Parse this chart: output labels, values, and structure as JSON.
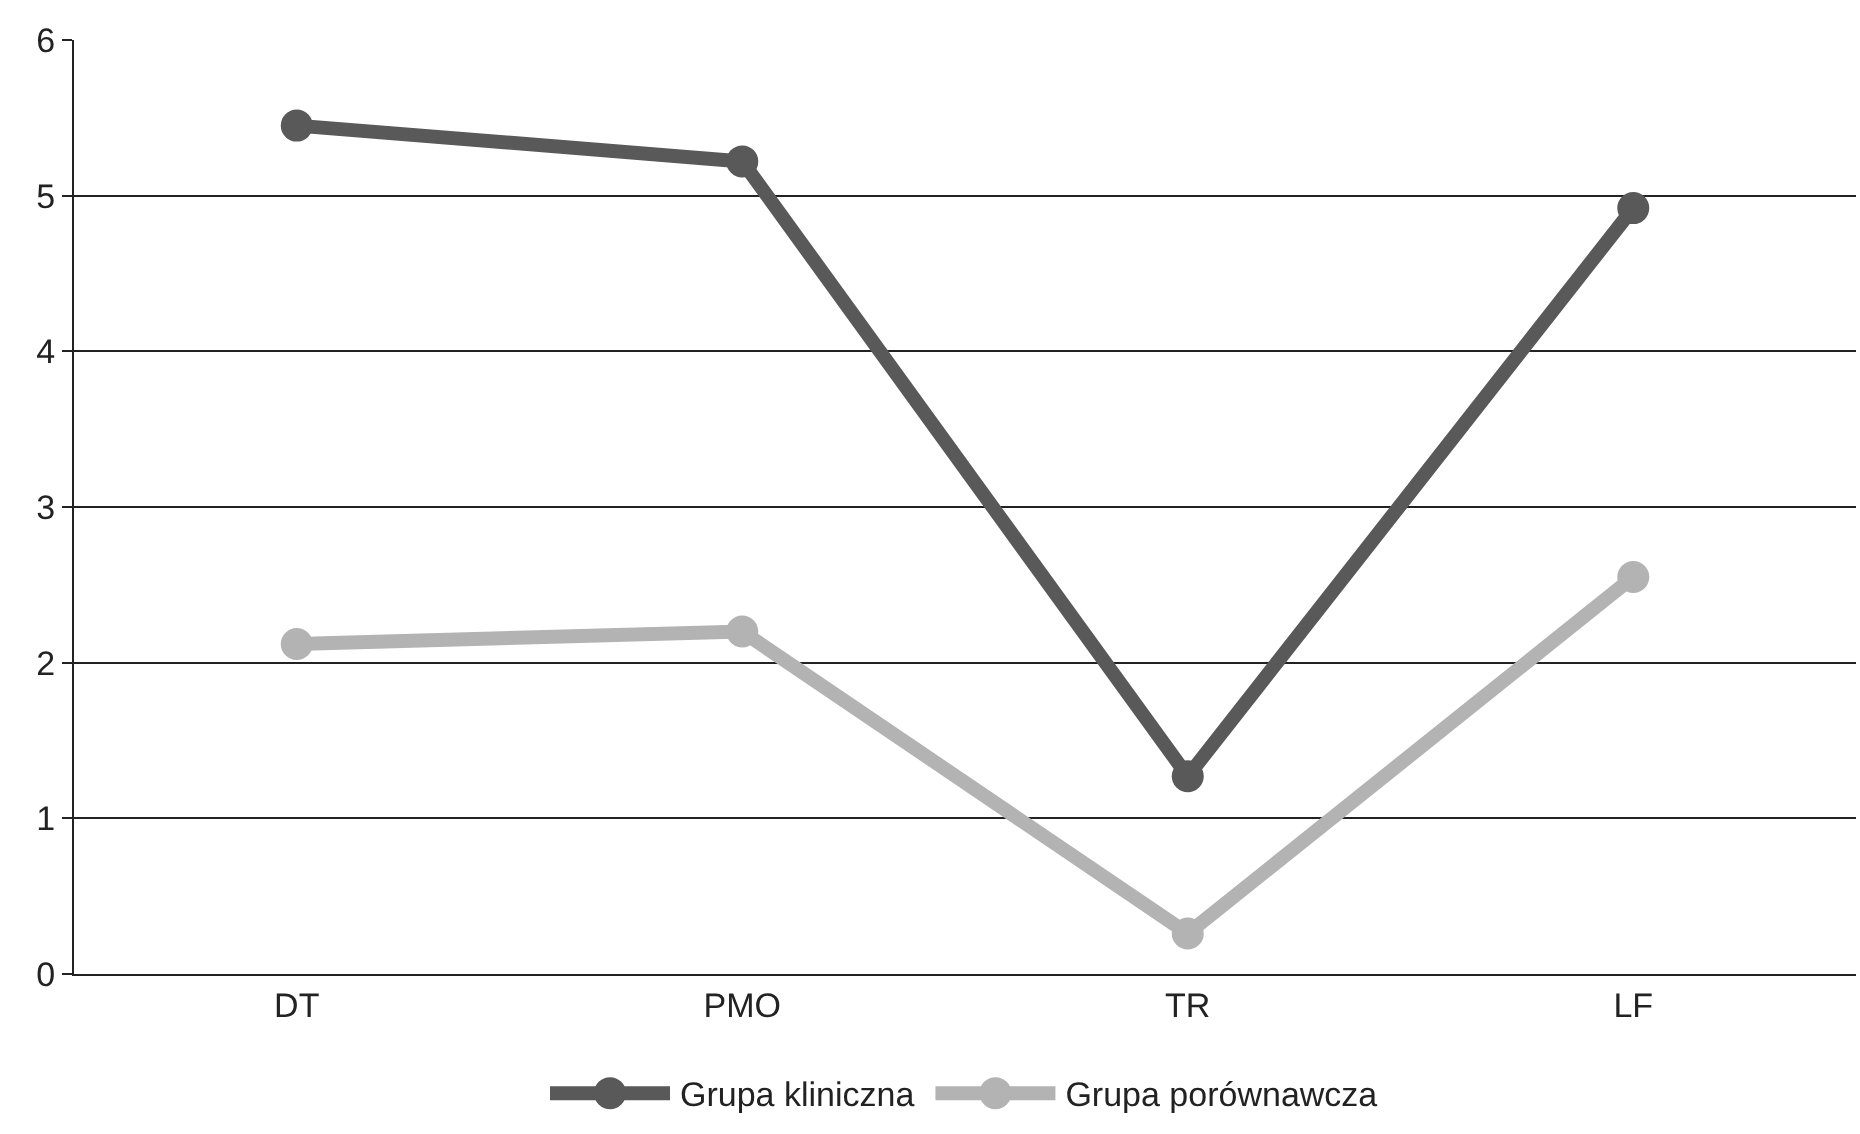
{
  "chart_data": {
    "type": "line",
    "categories": [
      "DT",
      "PMO",
      "TR",
      "LF"
    ],
    "series": [
      {
        "name": "Grupa kliniczna",
        "color": "#595959",
        "values": [
          5.45,
          5.22,
          1.27,
          4.92
        ]
      },
      {
        "name": "Grupa porównawcza",
        "color": "#b3b3b3",
        "values": [
          2.12,
          2.2,
          0.26,
          2.55
        ]
      }
    ],
    "ylim": [
      0,
      6
    ],
    "yticks": [
      0,
      1,
      2,
      3,
      4,
      5,
      6
    ],
    "grid": "y",
    "legend": "bottom",
    "marker": "circle",
    "line_style": "solid"
  }
}
